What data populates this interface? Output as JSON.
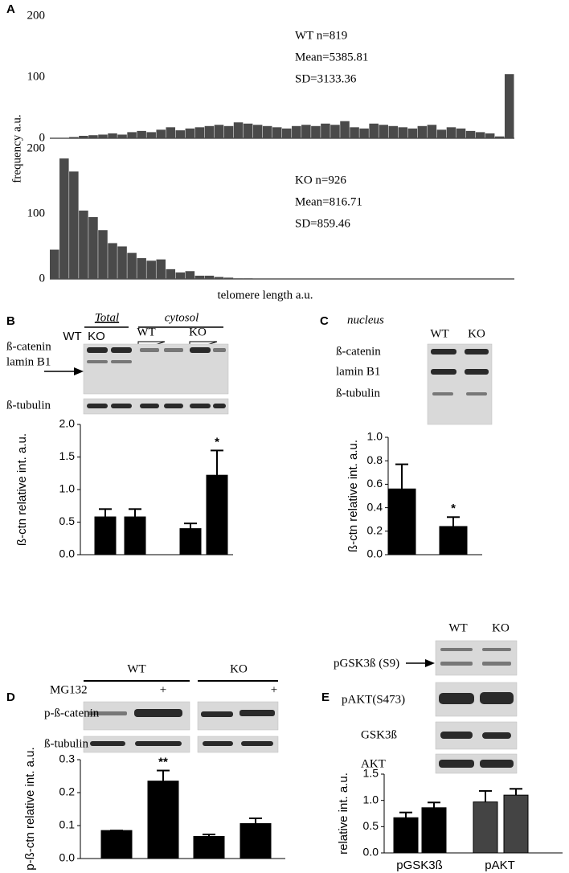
{
  "chart_data": [
    {
      "type": "histogram",
      "ylabel": "frequency a.u.",
      "color": "#4a4a4a",
      "ylim": [
        0,
        200
      ],
      "yticks": [
        0,
        100,
        200
      ],
      "annotation": [
        "WT n=819",
        "Mean=5385.81",
        "SD=3133.36"
      ],
      "values": [
        0,
        0,
        2,
        4,
        5,
        6,
        8,
        6,
        10,
        12,
        10,
        14,
        18,
        13,
        16,
        18,
        20,
        22,
        20,
        26,
        24,
        22,
        20,
        18,
        16,
        20,
        22,
        20,
        24,
        22,
        28,
        18,
        16,
        24,
        22,
        20,
        18,
        16,
        20,
        22,
        14,
        18,
        16,
        12,
        10,
        8,
        3,
        105
      ]
    },
    {
      "type": "histogram",
      "xlabel": "telomere length a.u.",
      "color": "#4a4a4a",
      "ylim": [
        0,
        200
      ],
      "yticks": [
        0,
        100,
        200
      ],
      "annotation": [
        "KO n=926",
        "Mean=816.71",
        "SD=859.46"
      ],
      "values": [
        45,
        185,
        165,
        105,
        95,
        75,
        55,
        50,
        40,
        32,
        28,
        30,
        15,
        10,
        12,
        5,
        5,
        3,
        2,
        1,
        1,
        0,
        0,
        0,
        0,
        0,
        0,
        0,
        0,
        0,
        0,
        0,
        0,
        0,
        0,
        0,
        0,
        0,
        0,
        0,
        0,
        0,
        0,
        0,
        0,
        0,
        0,
        0
      ]
    },
    {
      "type": "bar",
      "ylabel": "ß-ctn relative int. a.u.",
      "ylim": [
        0,
        2.0
      ],
      "yticks": [
        {
          "value": 0,
          "label": "0.0"
        },
        {
          "value": 0.5,
          "label": "0.5"
        },
        {
          "value": 1,
          "label": "1.0"
        },
        {
          "value": 1.5,
          "label": "1.5"
        },
        {
          "value": 2,
          "label": "2.0"
        }
      ],
      "colors": [
        "#000000",
        "#000000",
        "#000000",
        "#000000"
      ],
      "values": [
        0.58,
        0.58,
        0.4,
        1.22
      ],
      "errors": [
        0.12,
        0.12,
        0.08,
        0.38
      ],
      "value_annotations": [
        null,
        null,
        null,
        "*"
      ]
    },
    {
      "type": "bar",
      "ylabel": "ß-ctn relative int. a.u.",
      "ylim": [
        0,
        1.0
      ],
      "yticks": [
        {
          "value": 0,
          "label": "0.0"
        },
        0.2,
        0.4,
        0.6,
        0.8,
        {
          "value": 1,
          "label": "1.0"
        }
      ],
      "colors": [
        "#000000",
        "#000000"
      ],
      "values": [
        0.56,
        0.24
      ],
      "errors": [
        0.21,
        0.08
      ],
      "value_annotations": [
        null,
        "*"
      ]
    },
    {
      "type": "bar",
      "ylabel": "p-ß-ctn relative int. a.u.",
      "ylim": [
        0,
        0.3
      ],
      "yticks": [
        {
          "value": 0,
          "label": "0.0"
        },
        0.1,
        0.2,
        0.3
      ],
      "colors": [
        "#000000",
        "#000000",
        "#000000",
        "#000000"
      ],
      "values": [
        0.085,
        0.235,
        0.067,
        0.106
      ],
      "errors": [
        0,
        0.032,
        0.006,
        0.016
      ],
      "value_annotations": [
        null,
        "**",
        null,
        null
      ]
    },
    {
      "type": "bar",
      "ylabel": "relative int. a.u.",
      "ylim": [
        0,
        1.5
      ],
      "yticks": [
        {
          "value": 0,
          "label": "0.0"
        },
        0.5,
        {
          "value": 1,
          "label": "1.0"
        },
        1.5
      ],
      "colors": [
        "#000000",
        "#000000",
        "#444444",
        "#444444"
      ],
      "group_labels": [
        "pGSK3ß",
        "pAKT"
      ],
      "values": [
        0.67,
        0.86,
        0.97,
        1.1
      ],
      "errors": [
        0.1,
        0.1,
        0.21,
        0.12
      ],
      "value_annotations": [
        null,
        null,
        null,
        null
      ]
    }
  ],
  "panel_labels": [
    "A",
    "B",
    "C",
    "D",
    "E"
  ],
  "blots": {
    "B": {
      "header": [
        "Total",
        "cytosol"
      ],
      "lanes": [
        "WT",
        "KO",
        "WT",
        "KO"
      ],
      "rows": [
        "ß-catenin",
        "lamin B1",
        "ß-tubulin"
      ]
    },
    "C": {
      "header": "nucleus",
      "lanes": [
        "WT",
        "KO"
      ],
      "rows": [
        "ß-catenin",
        "lamin B1",
        "ß-tubulin"
      ]
    },
    "D": {
      "groups": [
        "WT",
        "KO"
      ],
      "treatment": "MG132",
      "marks": [
        "+",
        "+"
      ],
      "rows": [
        "p-ß-catenin",
        "ß-tubulin"
      ]
    },
    "E": {
      "lanes": [
        "WT",
        "KO"
      ],
      "rows": [
        "pGSK3ß (S9)",
        "pAKT(S473)",
        "GSK3ß",
        "AKT"
      ]
    }
  }
}
